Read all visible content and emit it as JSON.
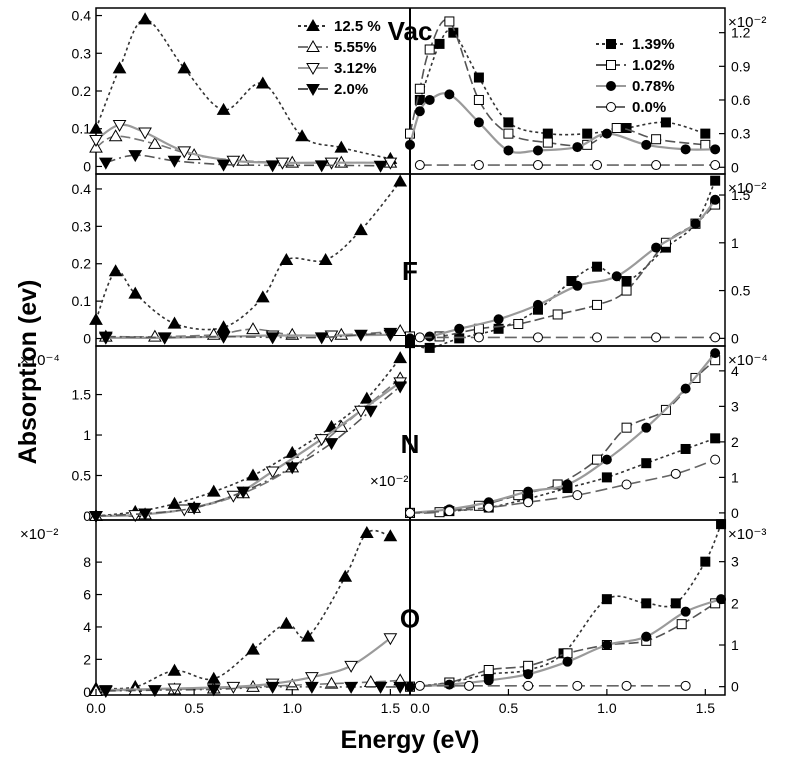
{
  "chart_data": {
    "type": "line",
    "ylabel": "Absorption (ev)",
    "xlabel": "Energy (eV)",
    "x_ticks": [
      "0.0",
      "0.5",
      "1.0",
      "1.5"
    ],
    "xlim": [
      0,
      1.6
    ],
    "legend_left": [
      {
        "name": "12.5 %",
        "color": "#333333",
        "dash": "3,3",
        "marker": "tri-up-filled"
      },
      {
        "name": "5.55%",
        "color": "#777777",
        "dash": "10,4",
        "marker": "tri-up-open"
      },
      {
        "name": "3.12%",
        "color": "#9a9a9a",
        "dash": "",
        "marker": "tri-down-open"
      },
      {
        "name": "2.0%",
        "color": "#555555",
        "dash": "10,4,2,4",
        "marker": "tri-down-filled"
      }
    ],
    "legend_right": [
      {
        "name": "1.39%",
        "color": "#333333",
        "dash": "3,3",
        "marker": "square-filled"
      },
      {
        "name": "1.02%",
        "color": "#555555",
        "dash": "10,4",
        "marker": "square-open"
      },
      {
        "name": "0.78%",
        "color": "#9a9a9a",
        "dash": "",
        "marker": "circle-filled"
      },
      {
        "name": "0.0%",
        "color": "#666666",
        "dash": "12,5",
        "marker": "circle-open"
      }
    ],
    "panels": [
      {
        "label": "Vac",
        "left": {
          "ylim": [
            -0.02,
            0.42
          ],
          "ticks": [
            "0",
            "0.1",
            "0.2",
            "0.3",
            "0.4"
          ],
          "multiplier": "",
          "series": [
            {
              "name": "12.5 %",
              "x": [
                0,
                0.12,
                0.25,
                0.45,
                0.65,
                0.85,
                1.05,
                1.25,
                1.5
              ],
              "y": [
                0.1,
                0.26,
                0.39,
                0.26,
                0.15,
                0.22,
                0.08,
                0.05,
                0.02
              ]
            },
            {
              "name": "5.55%",
              "x": [
                0,
                0.1,
                0.3,
                0.5,
                0.75,
                1.0,
                1.25,
                1.5
              ],
              "y": [
                0.05,
                0.08,
                0.06,
                0.03,
                0.015,
                0.01,
                0.01,
                0.01
              ]
            },
            {
              "name": "3.12%",
              "x": [
                0,
                0.12,
                0.25,
                0.45,
                0.7,
                0.95,
                1.2,
                1.5
              ],
              "y": [
                0.07,
                0.11,
                0.09,
                0.04,
                0.015,
                0.01,
                0.01,
                0.01
              ]
            },
            {
              "name": "2.0%",
              "x": [
                0.05,
                0.2,
                0.4,
                0.65,
                0.9,
                1.15,
                1.45
              ],
              "y": [
                0.01,
                0.03,
                0.015,
                0.005,
                0.003,
                0.003,
                0.002
              ]
            }
          ]
        },
        "right": {
          "ylim": [
            -0.06,
            1.42
          ],
          "ticks": [
            "0",
            "0.3",
            "0.6",
            "0.9",
            "1.2"
          ],
          "multiplier": "×10⁻²",
          "series": [
            {
              "name": "1.39%",
              "x": [
                0.05,
                0.15,
                0.22,
                0.35,
                0.5,
                0.7,
                0.9,
                1.1,
                1.3,
                1.5
              ],
              "y": [
                0.6,
                1.1,
                1.2,
                0.8,
                0.4,
                0.3,
                0.3,
                0.35,
                0.4,
                0.3
              ]
            },
            {
              "name": "1.02%",
              "x": [
                0,
                0.05,
                0.1,
                0.2,
                0.35,
                0.5,
                0.7,
                0.9,
                1.05,
                1.25,
                1.5
              ],
              "y": [
                0.3,
                0.7,
                1.05,
                1.3,
                0.6,
                0.3,
                0.22,
                0.2,
                0.35,
                0.25,
                0.2
              ]
            },
            {
              "name": "0.78%",
              "x": [
                0,
                0.05,
                0.1,
                0.2,
                0.35,
                0.5,
                0.65,
                0.85,
                1.0,
                1.2,
                1.4,
                1.55
              ],
              "y": [
                0.2,
                0.5,
                0.6,
                0.65,
                0.4,
                0.15,
                0.15,
                0.18,
                0.3,
                0.2,
                0.16,
                0.16
              ]
            },
            {
              "name": "0.0%",
              "x": [
                0.05,
                0.35,
                0.65,
                0.95,
                1.25,
                1.55
              ],
              "y": [
                0.02,
                0.02,
                0.02,
                0.02,
                0.02,
                0.02
              ]
            }
          ]
        }
      },
      {
        "label": "F",
        "left": {
          "ylim": [
            -0.02,
            0.44
          ],
          "ticks": [
            "0",
            "0.1",
            "0.2",
            "0.3",
            "0.4"
          ],
          "multiplier": "",
          "series": [
            {
              "name": "12.5 %",
              "x": [
                0,
                0.1,
                0.2,
                0.4,
                0.65,
                0.85,
                0.97,
                1.17,
                1.35,
                1.55
              ],
              "y": [
                0.05,
                0.18,
                0.12,
                0.04,
                0.03,
                0.11,
                0.21,
                0.21,
                0.29,
                0.42
              ]
            },
            {
              "name": "5.55%",
              "x": [
                0.05,
                0.3,
                0.6,
                0.8,
                1.0,
                1.25,
                1.55
              ],
              "y": [
                0.005,
                0.005,
                0.01,
                0.025,
                0.01,
                0.01,
                0.02
              ]
            },
            {
              "name": "3.12%",
              "x": [
                0.05,
                0.35,
                0.65,
                0.9,
                1.2,
                1.5
              ],
              "y": [
                0.002,
                0.002,
                0.005,
                0.008,
                0.008,
                0.01
              ]
            },
            {
              "name": "2.0%",
              "x": [
                0.05,
                0.35,
                0.65,
                0.9,
                1.15,
                1.35,
                1.5
              ],
              "y": [
                0.005,
                0.003,
                0.005,
                0.003,
                0.003,
                0.01,
                0.015
              ]
            }
          ]
        },
        "right": {
          "ylim": [
            -0.08,
            1.72
          ],
          "ticks": [
            "0",
            "0.5",
            "1",
            "1.5"
          ],
          "multiplier": "×10⁻²",
          "series": [
            {
              "name": "1.39%",
              "x": [
                0,
                0.1,
                0.25,
                0.45,
                0.65,
                0.82,
                0.95,
                1.1,
                1.3,
                1.45,
                1.55
              ],
              "y": [
                -0.05,
                -0.1,
                0.0,
                0.1,
                0.3,
                0.6,
                0.75,
                0.6,
                0.95,
                1.2,
                1.65
              ]
            },
            {
              "name": "1.02%",
              "x": [
                0,
                0.15,
                0.35,
                0.55,
                0.75,
                0.95,
                1.1,
                1.3,
                1.45,
                1.55
              ],
              "y": [
                0.02,
                0.02,
                0.1,
                0.15,
                0.25,
                0.35,
                0.5,
                1.0,
                1.2,
                1.4
              ]
            },
            {
              "name": "0.78%",
              "x": [
                0,
                0.1,
                0.25,
                0.45,
                0.65,
                0.85,
                1.05,
                1.25,
                1.45,
                1.55
              ],
              "y": [
                0.0,
                0.02,
                0.1,
                0.2,
                0.35,
                0.55,
                0.65,
                0.95,
                1.2,
                1.45
              ]
            },
            {
              "name": "0.0%",
              "x": [
                0.05,
                0.35,
                0.65,
                0.95,
                1.25,
                1.55
              ],
              "y": [
                0.01,
                0.01,
                0.01,
                0.01,
                0.01,
                0.01
              ]
            }
          ]
        }
      },
      {
        "label": "N",
        "left": {
          "ylim": [
            -0.05,
            2.1
          ],
          "ticks": [
            "0",
            "0.5",
            "1",
            "1.5"
          ],
          "multiplier": "×10⁻⁴",
          "series": [
            {
              "name": "12.5 %",
              "x": [
                0,
                0.2,
                0.4,
                0.6,
                0.8,
                1.0,
                1.2,
                1.38,
                1.55
              ],
              "y": [
                0.0,
                0.05,
                0.15,
                0.3,
                0.5,
                0.78,
                1.1,
                1.45,
                1.95
              ]
            },
            {
              "name": "5.55%",
              "x": [
                0,
                0.25,
                0.5,
                0.75,
                1.0,
                1.25,
                1.55
              ],
              "y": [
                0.0,
                0.02,
                0.1,
                0.28,
                0.6,
                1.1,
                1.7
              ]
            },
            {
              "name": "3.12%",
              "x": [
                0,
                0.2,
                0.45,
                0.7,
                0.9,
                1.15,
                1.35,
                1.55
              ],
              "y": [
                0.0,
                0.01,
                0.08,
                0.25,
                0.55,
                0.95,
                1.3,
                1.65
              ]
            },
            {
              "name": "2.0%",
              "x": [
                0,
                0.25,
                0.5,
                0.75,
                1.0,
                1.2,
                1.4,
                1.55
              ],
              "y": [
                0.0,
                0.03,
                0.1,
                0.3,
                0.6,
                0.9,
                1.3,
                1.6
              ]
            }
          ]
        },
        "right": {
          "ylim": [
            -0.2,
            4.7
          ],
          "ticks": [
            "0",
            "1",
            "2",
            "3",
            "4"
          ],
          "multiplier": "×10⁻⁴",
          "series": [
            {
              "name": "1.39%",
              "x": [
                0,
                0.2,
                0.4,
                0.6,
                0.8,
                1.0,
                1.2,
                1.4,
                1.55
              ],
              "y": [
                0.0,
                0.05,
                0.15,
                0.4,
                0.7,
                1.0,
                1.4,
                1.8,
                2.1
              ]
            },
            {
              "name": "1.02%",
              "x": [
                0,
                0.15,
                0.35,
                0.55,
                0.75,
                0.95,
                1.1,
                1.3,
                1.45,
                1.55
              ],
              "y": [
                0.0,
                0.02,
                0.2,
                0.5,
                0.8,
                1.5,
                2.4,
                2.9,
                3.8,
                4.3
              ]
            },
            {
              "name": "0.78%",
              "x": [
                0,
                0.2,
                0.4,
                0.6,
                0.8,
                1.0,
                1.2,
                1.4,
                1.55
              ],
              "y": [
                0.0,
                0.1,
                0.3,
                0.6,
                0.8,
                1.5,
                2.4,
                3.5,
                4.5
              ]
            },
            {
              "name": "0.0%",
              "x": [
                0,
                0.2,
                0.4,
                0.6,
                0.85,
                1.1,
                1.35,
                1.55
              ],
              "y": [
                0.0,
                0.05,
                0.15,
                0.3,
                0.5,
                0.8,
                1.1,
                1.5
              ]
            }
          ]
        },
        "extra_label": "×10⁻²"
      },
      {
        "label": "O",
        "left": {
          "ylim": [
            -0.2,
            10.6
          ],
          "ticks": [
            "0",
            "2",
            "4",
            "6",
            "8"
          ],
          "multiplier": "×10⁻²",
          "series": [
            {
              "name": "12.5 %",
              "x": [
                0,
                0.2,
                0.4,
                0.6,
                0.8,
                0.97,
                1.08,
                1.27,
                1.38,
                1.5
              ],
              "y": [
                0.2,
                0.3,
                1.3,
                0.8,
                2.6,
                4.2,
                3.4,
                7.1,
                9.8,
                9.6
              ]
            },
            {
              "name": "5.55%",
              "x": [
                0,
                0.2,
                0.4,
                0.6,
                0.8,
                1.0,
                1.2,
                1.4,
                1.55
              ],
              "y": [
                0.05,
                0.1,
                0.15,
                0.2,
                0.3,
                0.4,
                0.5,
                0.6,
                0.7
              ]
            },
            {
              "name": "3.12%",
              "x": [
                0.05,
                0.4,
                0.7,
                0.9,
                1.1,
                1.3,
                1.5
              ],
              "y": [
                0.1,
                0.2,
                0.3,
                0.5,
                0.9,
                1.6,
                3.3
              ]
            },
            {
              "name": "2.0%",
              "x": [
                0.05,
                0.3,
                0.6,
                0.9,
                1.1,
                1.3,
                1.45,
                1.55
              ],
              "y": [
                0.05,
                0.1,
                0.15,
                0.3,
                0.3,
                0.3,
                0.3,
                0.3
              ]
            }
          ]
        },
        "right": {
          "ylim": [
            -0.2,
            4.0
          ],
          "ticks": [
            "0",
            "1",
            "2",
            "3"
          ],
          "multiplier": "×10⁻³",
          "series": [
            {
              "name": "1.39%",
              "x": [
                0,
                0.2,
                0.4,
                0.6,
                0.78,
                1.0,
                1.2,
                1.35,
                1.5,
                1.58
              ],
              "y": [
                0.0,
                0.1,
                0.3,
                0.4,
                0.8,
                2.1,
                2.0,
                2.0,
                3.0,
                3.9
              ]
            },
            {
              "name": "1.02%",
              "x": [
                0,
                0.2,
                0.4,
                0.6,
                0.8,
                1.0,
                1.2,
                1.38,
                1.55
              ],
              "y": [
                0.0,
                0.1,
                0.4,
                0.5,
                0.8,
                1.0,
                1.1,
                1.5,
                2.0
              ]
            },
            {
              "name": "0.78%",
              "x": [
                0,
                0.2,
                0.4,
                0.6,
                0.8,
                1.0,
                1.2,
                1.4,
                1.58
              ],
              "y": [
                0.0,
                0.05,
                0.15,
                0.3,
                0.6,
                1.0,
                1.2,
                1.8,
                2.1
              ]
            },
            {
              "name": "0.0%",
              "x": [
                0.05,
                0.3,
                0.6,
                0.85,
                1.1,
                1.4
              ],
              "y": [
                0.02,
                0.02,
                0.02,
                0.02,
                0.02,
                0.02
              ]
            }
          ]
        }
      }
    ]
  }
}
